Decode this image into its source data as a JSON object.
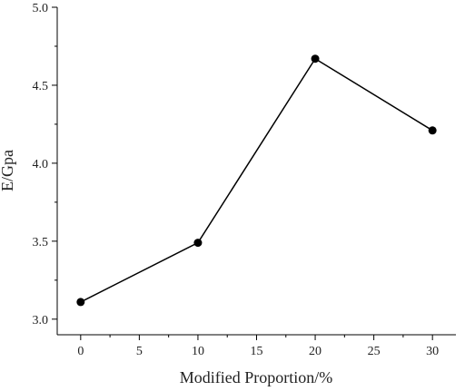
{
  "chart_data": {
    "type": "line",
    "title": "",
    "xlabel": "Modified Proportion/%",
    "ylabel": "E/Gpa",
    "xlim": [
      -2,
      32
    ],
    "ylim": [
      2.9,
      5.0
    ],
    "xticks": [
      "0",
      "5",
      "10",
      "15",
      "20",
      "25",
      "30"
    ],
    "yticks": [
      "3.0",
      "3.5",
      "4.0",
      "4.5",
      "5.0"
    ],
    "grid": false,
    "series": [
      {
        "x": [
          0,
          10,
          20,
          30
        ],
        "y": [
          3.11,
          3.49,
          4.67,
          4.21
        ],
        "color": "#000000",
        "marker": "circle"
      }
    ]
  }
}
